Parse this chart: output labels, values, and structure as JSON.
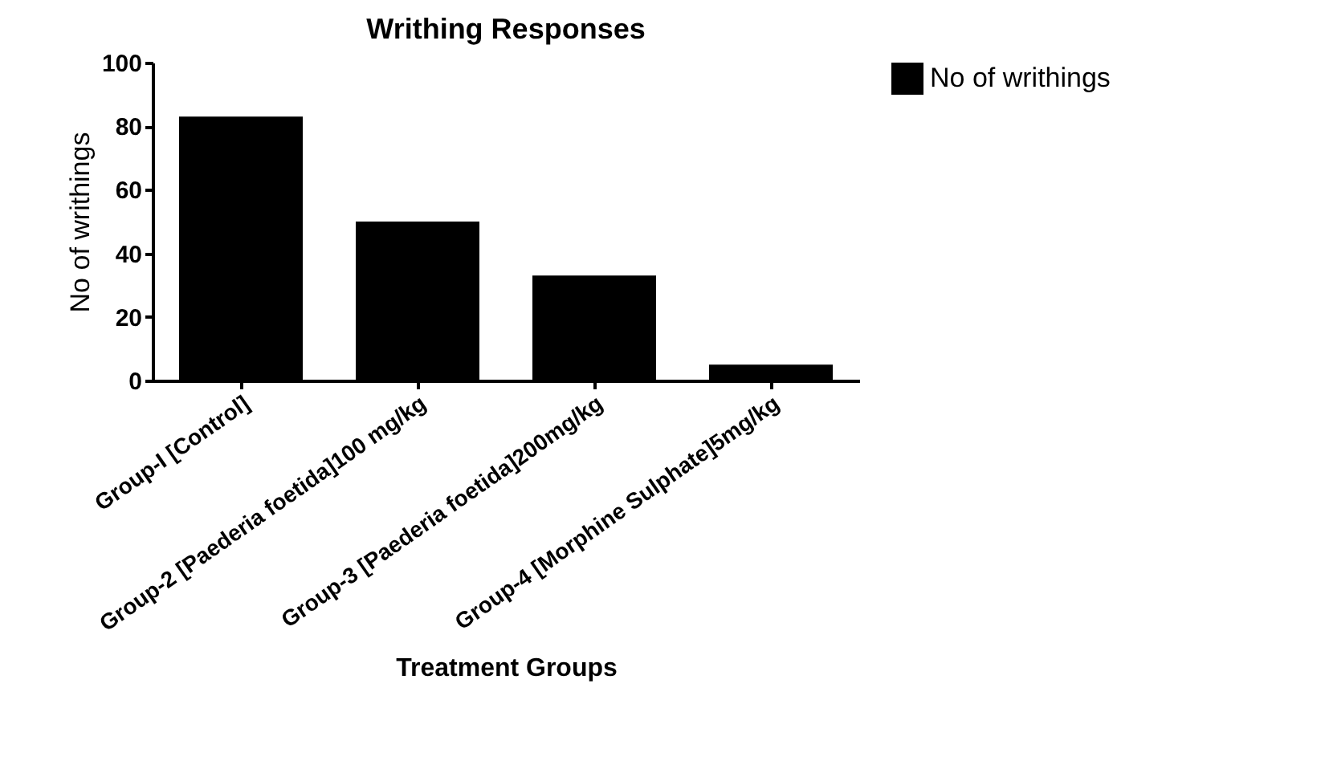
{
  "chart_data": {
    "type": "bar",
    "title": "Writhing Responses",
    "xlabel": "Treatment Groups",
    "ylabel": "No of writhings",
    "categories": [
      "Group-I [Control]",
      "Group-2 [Paederia foetida]100 mg/kg",
      "Group-3 [Paederia foetida]200mg/kg",
      "Group-4 [Morphine Sulphate]5mg/kg"
    ],
    "series": [
      {
        "name": "No of writhings",
        "color": "#000000",
        "values": [
          83,
          50,
          33,
          5
        ]
      }
    ],
    "ylim": [
      0,
      100
    ],
    "yticks": [
      0,
      20,
      40,
      60,
      80,
      100
    ],
    "grid": false,
    "legend": "top right"
  }
}
